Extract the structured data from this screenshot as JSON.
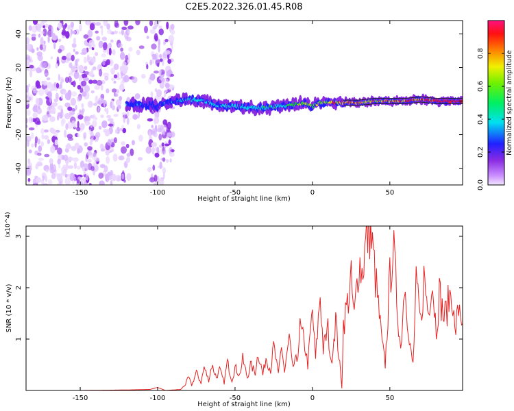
{
  "title": "C2E5.2022.326.01.45.R08",
  "chart_data": [
    {
      "type": "heatmap",
      "xlabel": "Height of straight line (km)",
      "ylabel": "Frequency (Hz)",
      "xlim": [
        -185,
        97
      ],
      "ylim": [
        -50,
        48
      ],
      "xticks": [
        -150,
        -100,
        -50,
        0,
        50
      ],
      "yticks": [
        40,
        20,
        0,
        -20,
        -40
      ],
      "grid": false,
      "colorbar": {
        "label": "Normalized spectral amplitude",
        "range": [
          0.0,
          1.0
        ],
        "ticks": [
          "0.0",
          "0.2",
          "0.4",
          "0.6",
          "0.8"
        ],
        "colormap": "rainbow (lavender-purple-blue-cyan-green-yellow-orange-red-pink)"
      },
      "noise_region_x": [
        -185,
        -90
      ],
      "signal_band": {
        "x_start": -120,
        "x_end": 97,
        "center_frequency_hz": [
          [
            -120,
            -2
          ],
          [
            -110,
            -2
          ],
          [
            -100,
            -3
          ],
          [
            -90,
            0
          ],
          [
            -80,
            1
          ],
          [
            -70,
            0
          ],
          [
            -60,
            -3
          ],
          [
            -50,
            -3
          ],
          [
            -40,
            -4
          ],
          [
            -30,
            -4
          ],
          [
            -20,
            -3
          ],
          [
            -10,
            -2
          ],
          [
            -5,
            -1
          ],
          [
            0,
            -3
          ],
          [
            5,
            -1
          ],
          [
            10,
            -1
          ],
          [
            20,
            -1
          ],
          [
            30,
            -1
          ],
          [
            40,
            0
          ],
          [
            50,
            0
          ],
          [
            60,
            0
          ],
          [
            70,
            1
          ],
          [
            80,
            0
          ],
          [
            90,
            0
          ],
          [
            97,
            0
          ]
        ],
        "peak_amplitude": [
          [
            -120,
            0.35
          ],
          [
            -100,
            0.3
          ],
          [
            -80,
            0.45
          ],
          [
            -60,
            0.45
          ],
          [
            -40,
            0.45
          ],
          [
            -20,
            0.5
          ],
          [
            -10,
            0.7
          ],
          [
            0,
            0.65
          ],
          [
            10,
            0.75
          ],
          [
            20,
            0.85
          ],
          [
            30,
            0.9
          ],
          [
            40,
            0.8
          ],
          [
            50,
            0.85
          ],
          [
            60,
            0.9
          ],
          [
            70,
            0.95
          ],
          [
            80,
            1.0
          ],
          [
            97,
            1.0
          ]
        ]
      },
      "colors": {
        "low": "#d8b4ff",
        "mid_low": "#8a2be2",
        "blue": "#2020ff",
        "cyan": "#00e0e0",
        "green": "#20e020",
        "yellow": "#e8e800",
        "red": "#ff1010"
      }
    },
    {
      "type": "line",
      "xlabel": "Height of straight line (km)",
      "ylabel": "SNR (10 * v/v)",
      "y_scale_note": "(x10^4)",
      "xlim": [
        -185,
        97
      ],
      "ylim": [
        0,
        3.2
      ],
      "xticks": [
        -150,
        -100,
        -50,
        0,
        50
      ],
      "yticks": [
        1,
        2,
        3
      ],
      "grid": false,
      "line_color": "#e62020",
      "series": [
        {
          "x": [
            -185,
            -150,
            -120,
            -105,
            -100,
            -95,
            -90,
            -85,
            -82,
            -80,
            -78,
            -75,
            -72,
            -70,
            -67,
            -65,
            -62,
            -60,
            -57,
            -55,
            -52,
            -50,
            -47,
            -45,
            -42,
            -40,
            -37,
            -35,
            -32,
            -30,
            -27,
            -25,
            -22,
            -20,
            -18,
            -15,
            -13,
            -10,
            -8,
            -5,
            -3,
            0,
            2,
            5,
            7,
            10,
            12,
            15,
            17,
            19,
            20,
            22,
            25,
            27,
            30,
            32,
            35,
            37,
            40,
            42,
            45,
            47,
            50,
            52,
            55,
            57,
            60,
            62,
            65,
            67,
            70,
            72,
            75,
            77,
            80,
            82,
            85,
            87,
            90,
            92,
            95,
            97
          ],
          "values": [
            0.0,
            0.0,
            0.01,
            0.02,
            0.06,
            0.0,
            0.01,
            0.02,
            0.12,
            0.25,
            0.1,
            0.35,
            0.15,
            0.45,
            0.2,
            0.5,
            0.25,
            0.4,
            0.15,
            0.55,
            0.2,
            0.45,
            0.3,
            0.6,
            0.25,
            0.5,
            0.35,
            0.75,
            0.3,
            0.65,
            0.4,
            0.85,
            0.3,
            0.9,
            0.35,
            1.0,
            0.45,
            0.6,
            1.2,
            0.9,
            0.5,
            1.55,
            0.6,
            1.9,
            0.8,
            1.2,
            0.5,
            1.4,
            0.7,
            0.05,
            1.3,
            1.6,
            2.1,
            1.4,
            2.55,
            2.3,
            2.95,
            3.2,
            2.4,
            1.8,
            0.9,
            0.5,
            2.15,
            2.85,
            1.6,
            0.8,
            2.4,
            1.0,
            0.5,
            2.0,
            1.3,
            2.2,
            1.5,
            2.3,
            1.2,
            1.9,
            1.4,
            1.6,
            2.0,
            1.1,
            1.7,
            1.3
          ]
        }
      ]
    }
  ]
}
